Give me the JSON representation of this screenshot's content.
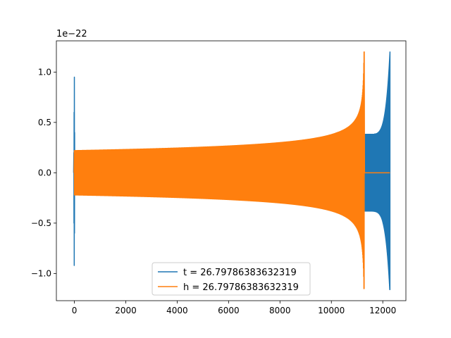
{
  "chart_data": {
    "type": "line",
    "title": "",
    "xlabel": "",
    "ylabel": "",
    "y_scale_label": "1e−22",
    "xlim": [
      -700,
      12900
    ],
    "ylim": [
      -1.27,
      1.31
    ],
    "grid": false,
    "legend_position": "lower-center",
    "x_ticks": [
      {
        "value": 0,
        "label": "0"
      },
      {
        "value": 2000,
        "label": "2000"
      },
      {
        "value": 4000,
        "label": "4000"
      },
      {
        "value": 6000,
        "label": "6000"
      },
      {
        "value": 8000,
        "label": "8000"
      },
      {
        "value": 10000,
        "label": "10000"
      },
      {
        "value": 12000,
        "label": "12000"
      }
    ],
    "y_ticks": [
      {
        "value": 1.0,
        "label": "1.0"
      },
      {
        "value": 0.5,
        "label": "0.5"
      },
      {
        "value": 0.0,
        "label": "0.0"
      },
      {
        "value": -0.5,
        "label": "−0.5"
      },
      {
        "value": -1.0,
        "label": "−1.0"
      }
    ],
    "series": [
      {
        "name": "t = 26.79786383632319",
        "color": "#1f77b4",
        "description_points": {
          "spike_x": 0,
          "spike_max": 0.95,
          "spike_min": -0.92,
          "flat_until_x": 11300,
          "chirp_start_x": 11300,
          "chirp_end_x": 12280,
          "chirp_start_amp": 0.38,
          "chirp_peak_amp": 1.2,
          "chirp_peak_min": -1.16,
          "tail_end_x": 12280
        }
      },
      {
        "name": "h = 26.79786383632319",
        "color": "#ff7f0e",
        "description_points": {
          "start_x": 0,
          "end_x": 11280,
          "start_amp": 0.22,
          "peak_amp": 1.2,
          "peak_min": -1.15,
          "flat_segment_x": [
            100,
            1050
          ],
          "tail_flat_x": [
            11300,
            12280
          ]
        }
      }
    ]
  }
}
